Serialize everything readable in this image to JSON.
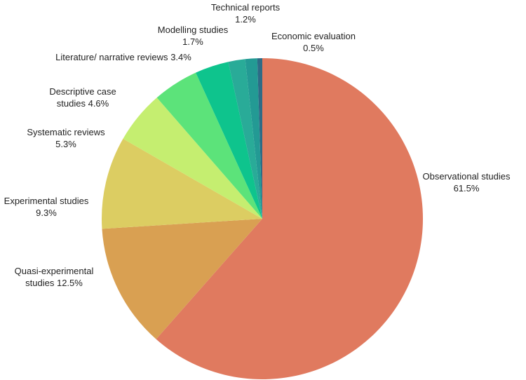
{
  "chart_data": {
    "type": "pie",
    "categories": [
      "Observational studies",
      "Quasi-experimental studies",
      "Experimental studies",
      "Systematic reviews",
      "Descriptive case studies",
      "Literature/ narrative reviews",
      "Modelling studies",
      "Technical reports",
      "Economic evaluation"
    ],
    "values": [
      61.5,
      12.5,
      9.3,
      5.3,
      4.6,
      3.4,
      1.7,
      1.2,
      0.5
    ],
    "value_labels": [
      "61.5%",
      "12.5%",
      "9.3%",
      "5.3%",
      "4.6%",
      "3.4%",
      "1.7%",
      "1.2%",
      "0.5%"
    ],
    "colors": [
      "#e07a5f",
      "#d9a052",
      "#dccd62",
      "#c5ee70",
      "#5ce37a",
      "#0ec48d",
      "#29ab98",
      "#239a94",
      "#2d6b86"
    ]
  }
}
